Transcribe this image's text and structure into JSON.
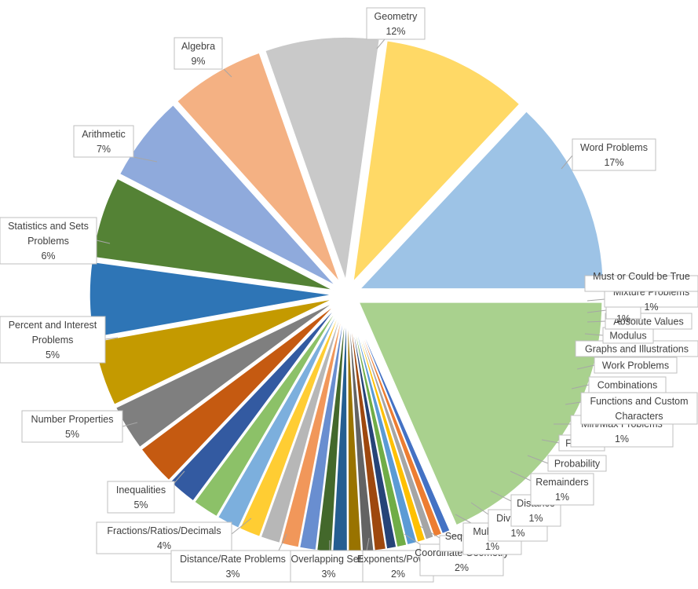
{
  "chart_data": {
    "type": "pie",
    "title": "",
    "slices": [
      {
        "name": "Word Problems",
        "percent_label": "17%",
        "value": 17,
        "color": "#A9D18E"
      },
      {
        "name": "Must or Could be True",
        "percent_label": "",
        "value": 0.5,
        "color": "#4472C4"
      },
      {
        "name": "Mixture Problems",
        "percent_label": "1%",
        "value": 0.5,
        "color": "#ED7D31"
      },
      {
        "name": "Roots",
        "percent_label": "1%",
        "value": 0.5,
        "color": "#A5A5A5"
      },
      {
        "name": "Absolute Values",
        "percent_label": "",
        "value": 0.5,
        "color": "#FFC000"
      },
      {
        "name": "Modulus",
        "percent_label": "",
        "value": 0.6,
        "color": "#5B9BD5"
      },
      {
        "name": "Graphs and Illustrations",
        "percent_label": "",
        "value": 0.6,
        "color": "#70AD47"
      },
      {
        "name": "Work Problems",
        "percent_label": "",
        "value": 0.6,
        "color": "#264478"
      },
      {
        "name": "Combinations",
        "percent_label": "",
        "value": 0.7,
        "color": "#9E480E"
      },
      {
        "name": "Functions and Custom Characters",
        "percent_label": "",
        "value": 0.7,
        "color": "#636363"
      },
      {
        "name": "Min/Max Problems",
        "percent_label": "1%",
        "value": 0.8,
        "color": "#997300"
      },
      {
        "name": "Factors",
        "percent_label": "",
        "value": 0.9,
        "color": "#255E91"
      },
      {
        "name": "Probability",
        "percent_label": "",
        "value": 0.9,
        "color": "#43682B"
      },
      {
        "name": "Remainders",
        "percent_label": "1%",
        "value": 1.0,
        "color": "#698ED0"
      },
      {
        "name": "Distance",
        "percent_label": "1%",
        "value": 1.1,
        "color": "#F1975A"
      },
      {
        "name": "Divisibility",
        "percent_label": "1%",
        "value": 1.2,
        "color": "#B7B7B7"
      },
      {
        "name": "Multiples",
        "percent_label": "",
        "value": 1.3,
        "color": "#FFCD33"
      },
      {
        "name": "Sequences",
        "percent_label": "",
        "value": 1.4,
        "color": "#7CAFDD"
      },
      {
        "name": "Coordinate Geometry",
        "percent_label": "2%",
        "value": 1.6,
        "color": "#8CC168"
      },
      {
        "name": "Exponents/Powers",
        "percent_label": "2%",
        "value": 1.8,
        "color": "#335AA1"
      },
      {
        "name": "Overlapping Sets",
        "percent_label": "3%",
        "value": 2.5,
        "color": "#C55A11"
      },
      {
        "name": "Distance/Rate Problems",
        "percent_label": "3%",
        "value": 2.8,
        "color": "#7F7F7F"
      },
      {
        "name": "Fractions/Ratios/Decimals",
        "percent_label": "4%",
        "value": 4.0,
        "color": "#C49A00"
      },
      {
        "name": "Inequalities",
        "percent_label": "5%",
        "value": 4.6,
        "color": "#2E75B6"
      },
      {
        "name": "Number Properties",
        "percent_label": "5%",
        "value": 5.0,
        "color": "#548235"
      },
      {
        "name": "Percent and Interest Problems",
        "percent_label": "5%",
        "value": 5.3,
        "color": "#8FAADC"
      },
      {
        "name": "Statistics and Sets Problems",
        "percent_label": "6%",
        "value": 5.8,
        "color": "#F4B183"
      },
      {
        "name": "Arithmetic",
        "percent_label": "7%",
        "value": 7.0,
        "color": "#C9C9C9"
      },
      {
        "name": "Algebra",
        "percent_label": "9%",
        "value": 9.0,
        "color": "#FFD966"
      },
      {
        "name": "Geometry",
        "percent_label": "12%",
        "value": 12.0,
        "color": "#9DC3E6"
      }
    ],
    "labels": [
      {
        "lines": [
          "Geometry",
          "12%"
        ]
      },
      {
        "lines": [
          "Algebra",
          "9%"
        ]
      },
      {
        "lines": [
          "Arithmetic",
          "7%"
        ]
      },
      {
        "lines": [
          "Statistics and Sets",
          "Problems",
          "6%"
        ]
      },
      {
        "lines": [
          "Percent and Interest",
          "Problems",
          "5%"
        ]
      },
      {
        "lines": [
          "Number Properties",
          "5%"
        ]
      },
      {
        "lines": [
          "Inequalities",
          "5%"
        ]
      },
      {
        "lines": [
          "Fractions/Ratios/Decimals",
          "4%"
        ]
      },
      {
        "lines": [
          "Distance/Rate Problems",
          "3%"
        ]
      },
      {
        "lines": [
          "Overlapping Sets",
          "3%"
        ]
      },
      {
        "lines": [
          "Exponents/Powers",
          "2%"
        ]
      },
      {
        "lines": [
          "Coordinate Geometry",
          "2%"
        ]
      },
      {
        "lines": [
          "Sequences",
          ""
        ]
      },
      {
        "lines": [
          "Multiples",
          "1%"
        ]
      },
      {
        "lines": [
          "Divisibility",
          "1%"
        ]
      },
      {
        "lines": [
          "Distance",
          "1%"
        ]
      },
      {
        "lines": [
          "Remainders",
          "1%"
        ]
      },
      {
        "lines": [
          "Probability"
        ]
      },
      {
        "lines": [
          "Factors"
        ]
      },
      {
        "lines": [
          "Min/Max Problems",
          "1%"
        ]
      },
      {
        "lines": [
          "Functions and Custom",
          "Characters"
        ]
      },
      {
        "lines": [
          "Combinations"
        ]
      },
      {
        "lines": [
          "Work Problems"
        ]
      },
      {
        "lines": [
          "Graphs and Illustrations"
        ]
      },
      {
        "lines": [
          "Modulus"
        ]
      },
      {
        "lines": [
          "Absolute Values"
        ]
      },
      {
        "lines": [
          "Roots",
          "1%"
        ]
      },
      {
        "lines": [
          "Mixture Problems",
          "1%"
        ]
      },
      {
        "lines": [
          "Must or Could be True",
          ""
        ]
      },
      {
        "lines": [
          "Word Problems",
          "17%"
        ]
      }
    ]
  }
}
